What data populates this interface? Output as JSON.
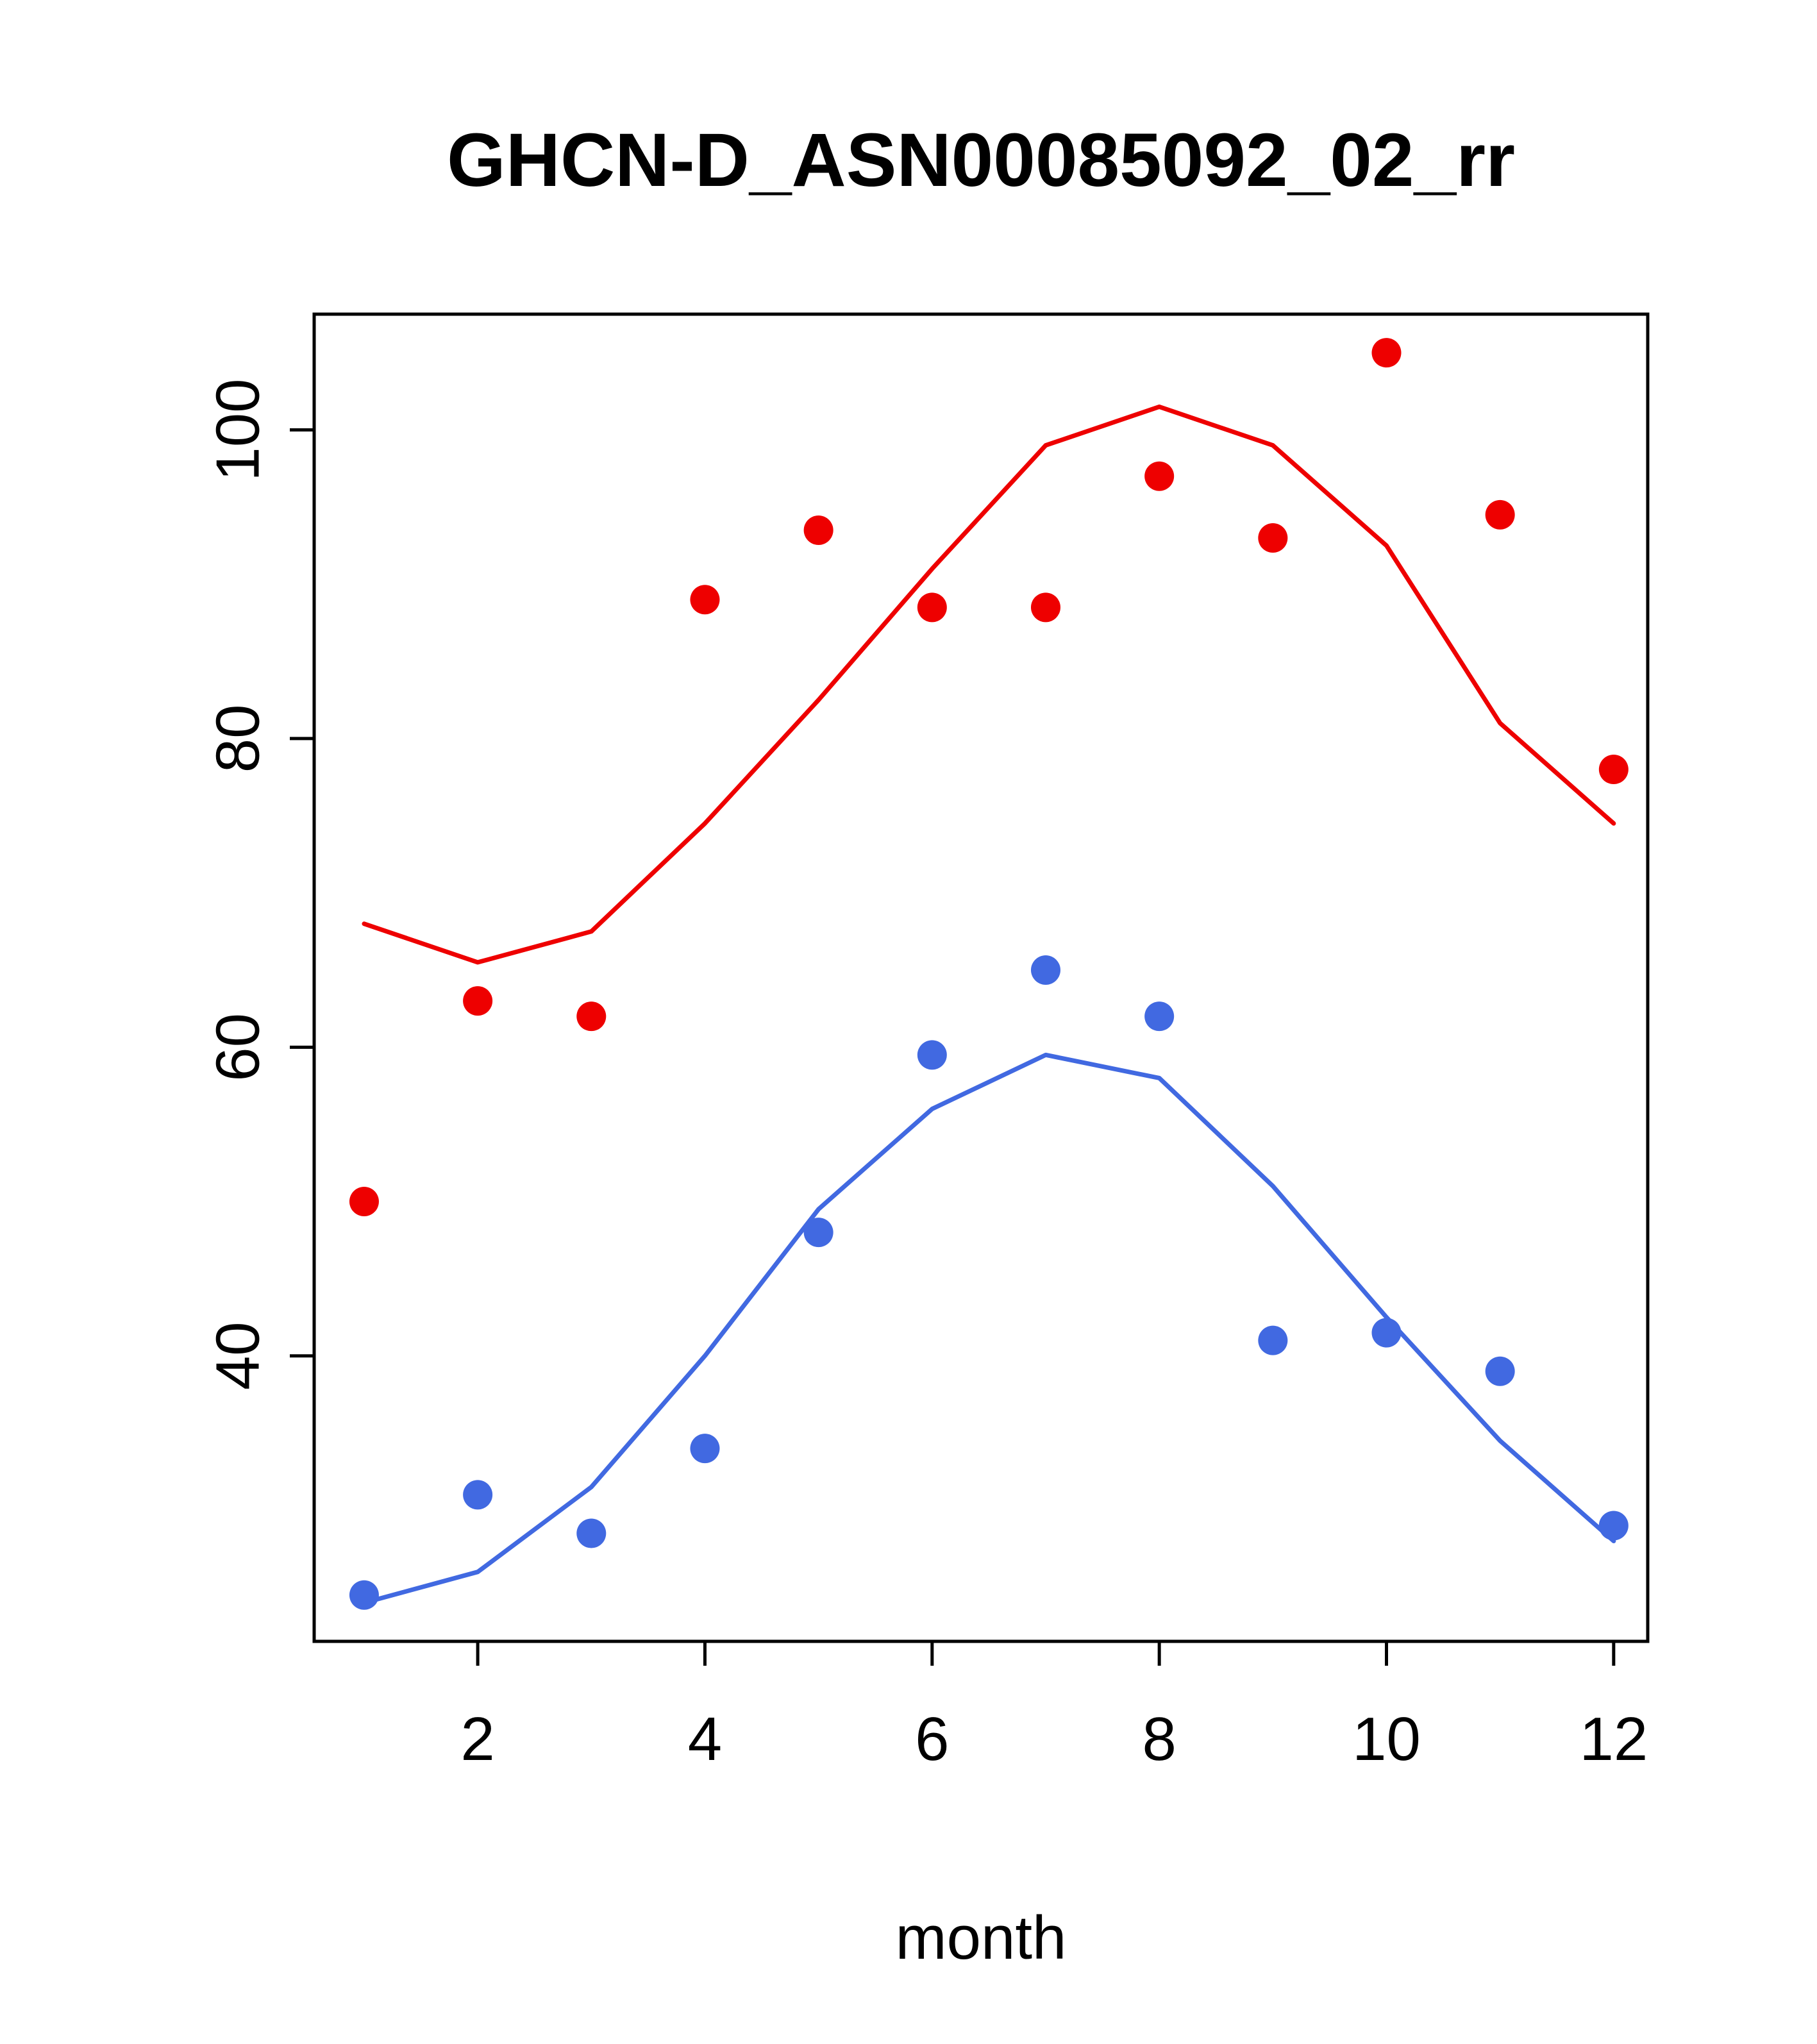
{
  "chart_data": {
    "type": "line",
    "title": "GHCN-D_ASN00085092_02_rr",
    "xlabel": "month",
    "ylabel": "",
    "x": [
      1,
      2,
      3,
      4,
      5,
      6,
      7,
      8,
      9,
      10,
      11,
      12
    ],
    "xticks": [
      2,
      4,
      6,
      8,
      10,
      12
    ],
    "yticks": [
      40,
      60,
      80,
      100
    ],
    "xlim": [
      0.56,
      12.3
    ],
    "ylim": [
      21.5,
      107.5
    ],
    "grid": false,
    "legend_position": "none",
    "colors": {
      "red": "#ee0000",
      "blue": "#4169e1",
      "axis": "#000000",
      "background": "#ffffff"
    },
    "series": [
      {
        "name": "red-line",
        "style": "line",
        "color": "#ee0000",
        "values": [
          68,
          65.5,
          67.5,
          74.5,
          82.5,
          91,
          99,
          101.5,
          99,
          92.5,
          81,
          74.5
        ]
      },
      {
        "name": "red-points",
        "style": "points",
        "color": "#ee0000",
        "values": [
          50,
          63,
          62,
          89,
          93.5,
          88.5,
          88.5,
          97,
          93,
          105,
          94.5,
          78
        ]
      },
      {
        "name": "blue-line",
        "style": "line",
        "color": "#4169e1",
        "values": [
          24,
          26,
          31.5,
          40,
          49.5,
          56,
          59.5,
          58,
          51,
          42.5,
          34.5,
          28
        ]
      },
      {
        "name": "blue-points",
        "style": "points",
        "color": "#4169e1",
        "values": [
          24.5,
          31,
          28.5,
          34,
          48,
          59.5,
          65,
          62,
          41,
          41.5,
          39,
          29
        ]
      }
    ]
  }
}
